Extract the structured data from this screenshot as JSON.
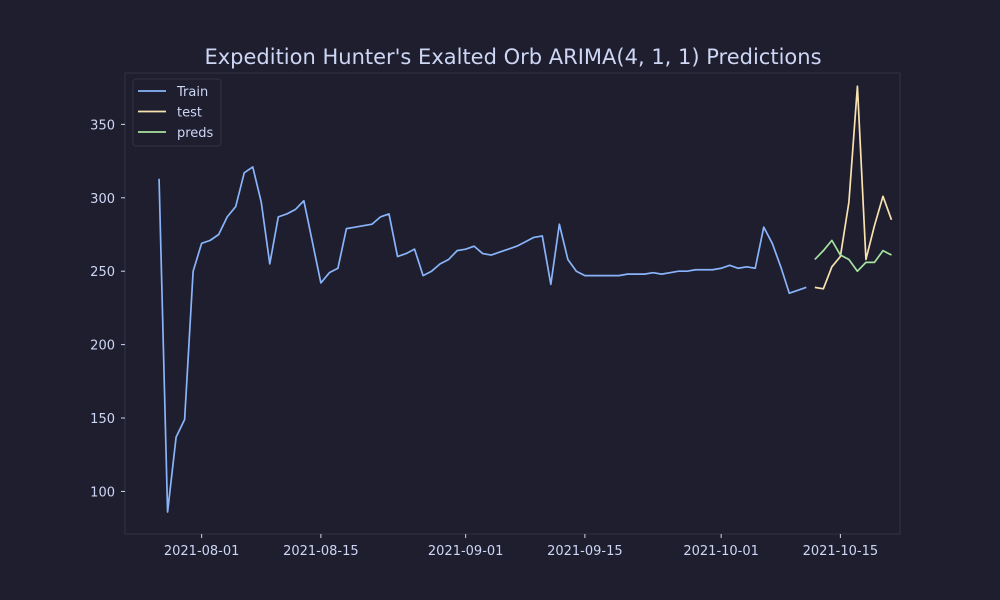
{
  "chart_data": {
    "type": "line",
    "title": "Expedition Hunter's Exalted Orb ARIMA(4, 1, 1) Predictions",
    "xlabel": "",
    "ylabel": "",
    "x_ticks": [
      "2021-08-01",
      "2021-08-15",
      "2021-09-01",
      "2021-09-15",
      "2021-10-01",
      "2021-10-15"
    ],
    "y_ticks": [
      100,
      150,
      200,
      250,
      300,
      350
    ],
    "xlim": [
      "2021-07-23",
      "2021-10-22"
    ],
    "ylim": [
      71,
      385
    ],
    "grid": false,
    "legend": "top-left",
    "series": [
      {
        "name": "Train",
        "color": "#89b4fa",
        "points": [
          [
            "2021-07-27",
            313
          ],
          [
            "2021-07-28",
            86
          ],
          [
            "2021-07-29",
            137
          ],
          [
            "2021-07-30",
            149
          ],
          [
            "2021-07-31",
            250
          ],
          [
            "2021-08-01",
            269
          ],
          [
            "2021-08-02",
            271
          ],
          [
            "2021-08-03",
            275
          ],
          [
            "2021-08-04",
            287
          ],
          [
            "2021-08-05",
            294
          ],
          [
            "2021-08-06",
            317
          ],
          [
            "2021-08-07",
            321
          ],
          [
            "2021-08-08",
            297
          ],
          [
            "2021-08-09",
            255
          ],
          [
            "2021-08-10",
            287
          ],
          [
            "2021-08-11",
            289
          ],
          [
            "2021-08-12",
            292
          ],
          [
            "2021-08-13",
            298
          ],
          [
            "2021-08-14",
            270
          ],
          [
            "2021-08-15",
            242
          ],
          [
            "2021-08-16",
            249
          ],
          [
            "2021-08-17",
            252
          ],
          [
            "2021-08-18",
            279
          ],
          [
            "2021-08-19",
            280
          ],
          [
            "2021-08-20",
            281
          ],
          [
            "2021-08-21",
            282
          ],
          [
            "2021-08-22",
            287
          ],
          [
            "2021-08-23",
            289
          ],
          [
            "2021-08-24",
            260
          ],
          [
            "2021-08-25",
            262
          ],
          [
            "2021-08-26",
            265
          ],
          [
            "2021-08-27",
            247
          ],
          [
            "2021-08-28",
            250
          ],
          [
            "2021-08-29",
            255
          ],
          [
            "2021-08-30",
            258
          ],
          [
            "2021-08-31",
            264
          ],
          [
            "2021-09-01",
            265
          ],
          [
            "2021-09-02",
            267
          ],
          [
            "2021-09-03",
            262
          ],
          [
            "2021-09-04",
            261
          ],
          [
            "2021-09-05",
            263
          ],
          [
            "2021-09-06",
            265
          ],
          [
            "2021-09-07",
            267
          ],
          [
            "2021-09-08",
            270
          ],
          [
            "2021-09-09",
            273
          ],
          [
            "2021-09-10",
            274
          ],
          [
            "2021-09-11",
            241
          ],
          [
            "2021-09-12",
            282
          ],
          [
            "2021-09-13",
            258
          ],
          [
            "2021-09-14",
            250
          ],
          [
            "2021-09-15",
            247
          ],
          [
            "2021-09-16",
            247
          ],
          [
            "2021-09-17",
            247
          ],
          [
            "2021-09-18",
            247
          ],
          [
            "2021-09-19",
            247
          ],
          [
            "2021-09-20",
            248
          ],
          [
            "2021-09-21",
            248
          ],
          [
            "2021-09-22",
            248
          ],
          [
            "2021-09-23",
            249
          ],
          [
            "2021-09-24",
            248
          ],
          [
            "2021-09-25",
            249
          ],
          [
            "2021-09-26",
            250
          ],
          [
            "2021-09-27",
            250
          ],
          [
            "2021-09-28",
            251
          ],
          [
            "2021-09-29",
            251
          ],
          [
            "2021-09-30",
            251
          ],
          [
            "2021-10-01",
            252
          ],
          [
            "2021-10-02",
            254
          ],
          [
            "2021-10-03",
            252
          ],
          [
            "2021-10-04",
            253
          ],
          [
            "2021-10-05",
            252
          ],
          [
            "2021-10-06",
            280
          ],
          [
            "2021-10-07",
            269
          ],
          [
            "2021-10-08",
            253
          ],
          [
            "2021-10-09",
            235
          ],
          [
            "2021-10-10",
            237
          ],
          [
            "2021-10-11",
            239
          ]
        ]
      },
      {
        "name": "test",
        "color": "#f9e2af",
        "points": [
          [
            "2021-10-12",
            239
          ],
          [
            "2021-10-13",
            238
          ],
          [
            "2021-10-14",
            253
          ],
          [
            "2021-10-15",
            260
          ],
          [
            "2021-10-16",
            297
          ],
          [
            "2021-10-17",
            376
          ],
          [
            "2021-10-18",
            258
          ],
          [
            "2021-10-19",
            281
          ],
          [
            "2021-10-20",
            301
          ],
          [
            "2021-10-21",
            285
          ]
        ]
      },
      {
        "name": "preds",
        "color": "#a6e3a1",
        "points": [
          [
            "2021-10-12",
            258
          ],
          [
            "2021-10-13",
            264
          ],
          [
            "2021-10-14",
            271
          ],
          [
            "2021-10-15",
            261
          ],
          [
            "2021-10-16",
            258
          ],
          [
            "2021-10-17",
            250
          ],
          [
            "2021-10-18",
            256
          ],
          [
            "2021-10-19",
            256
          ],
          [
            "2021-10-20",
            264
          ],
          [
            "2021-10-21",
            261
          ]
        ]
      }
    ]
  },
  "style": {
    "background": "#1e1e2e",
    "axes_edge": "#313244",
    "text": "#cdd6f4"
  }
}
